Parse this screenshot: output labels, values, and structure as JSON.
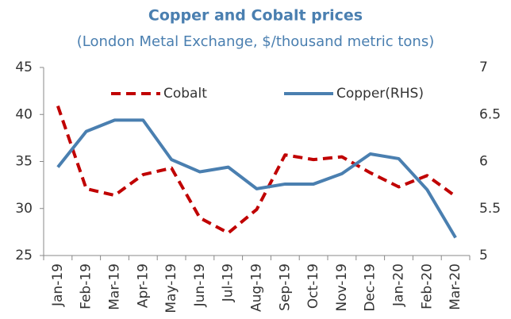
{
  "chart_data": {
    "type": "line",
    "title": "Copper and Cobalt prices",
    "subtitle": "(London Metal Exchange, $/thousand metric tons)",
    "categories": [
      "Jan-19",
      "Feb-19",
      "Mar-19",
      "Apr-19",
      "May-19",
      "Jun-19",
      "Jul-19",
      "Aug-19",
      "Sep-19",
      "Oct-19",
      "Nov-19",
      "Dec-19",
      "Jan-20",
      "Feb-20",
      "Mar-20"
    ],
    "series": [
      {
        "name": "Cobalt",
        "color": "#c00000",
        "dashed": true,
        "values": [
          40.9,
          32.1,
          31.4,
          33.6,
          34.3,
          29.0,
          27.4,
          29.9,
          35.7,
          35.2,
          35.5,
          33.8,
          32.3,
          33.5,
          31.3
        ]
      },
      {
        "name": "Copper(RHS)",
        "color": "#4a7fb0",
        "axis": "y2",
        "values": [
          5.94,
          6.32,
          6.44,
          6.44,
          6.02,
          5.89,
          5.94,
          5.71,
          5.76,
          5.76,
          5.87,
          6.08,
          6.03,
          5.7,
          5.19
        ]
      }
    ],
    "ylim": [
      25,
      45
    ],
    "yticks": [
      25,
      30,
      35,
      40,
      45
    ],
    "y2lim": [
      5,
      7
    ],
    "y2ticks": [
      5,
      5.5,
      6,
      6.5,
      7
    ],
    "grid": false,
    "legend": "top"
  }
}
